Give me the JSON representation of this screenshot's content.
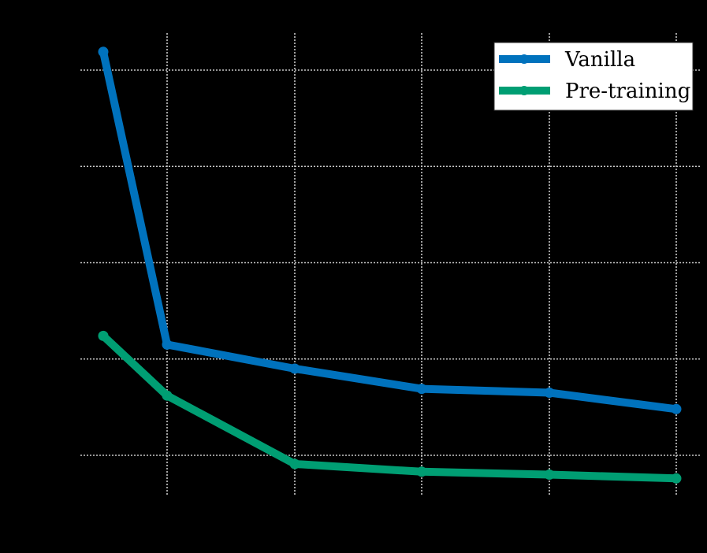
{
  "chart_data": {
    "type": "line",
    "title": "",
    "xlabel": "",
    "ylabel": "",
    "x": [
      1,
      2,
      3,
      4,
      5,
      6
    ],
    "categories": [
      "",
      "",
      "",
      "",
      "",
      ""
    ],
    "series": [
      {
        "name": "Vanilla",
        "color": "#0072BD",
        "values": [
          5.19,
          2.15,
          1.9,
          1.69,
          1.65,
          1.48
        ]
      },
      {
        "name": "Pre-training",
        "color": "#009E73",
        "values": [
          2.24,
          1.62,
          0.91,
          0.83,
          0.8,
          0.76
        ]
      }
    ],
    "ylim": [
      0.6,
      5.4
    ],
    "yticks": [
      1,
      2,
      3,
      4,
      5
    ],
    "grid": true,
    "legend_position": "upper right",
    "background": "#000000",
    "grid_color": "#c8c8c8"
  },
  "legend": {
    "items": [
      {
        "label": "Vanilla"
      },
      {
        "label": "Pre-training"
      }
    ]
  }
}
